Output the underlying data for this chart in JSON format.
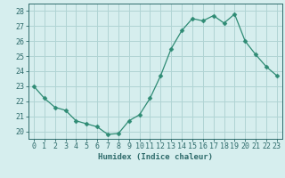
{
  "x": [
    0,
    1,
    2,
    3,
    4,
    5,
    6,
    7,
    8,
    9,
    10,
    11,
    12,
    13,
    14,
    15,
    16,
    17,
    18,
    19,
    20,
    21,
    22,
    23
  ],
  "y": [
    23.0,
    22.2,
    21.6,
    21.4,
    20.7,
    20.5,
    20.3,
    19.8,
    19.85,
    20.7,
    21.1,
    22.2,
    23.7,
    25.5,
    26.7,
    27.5,
    27.35,
    27.7,
    27.2,
    27.8,
    26.0,
    25.1,
    24.3,
    23.7
  ],
  "line_color": "#2e8b74",
  "marker": "D",
  "marker_size": 2.5,
  "bg_color": "#d6eeee",
  "grid_color": "#b0d4d4",
  "tick_color": "#2e6b6b",
  "xlabel": "Humidex (Indice chaleur)",
  "xlim": [
    -0.5,
    23.5
  ],
  "ylim": [
    19.5,
    28.5
  ],
  "yticks": [
    20,
    21,
    22,
    23,
    24,
    25,
    26,
    27,
    28
  ],
  "xticks": [
    0,
    1,
    2,
    3,
    4,
    5,
    6,
    7,
    8,
    9,
    10,
    11,
    12,
    13,
    14,
    15,
    16,
    17,
    18,
    19,
    20,
    21,
    22,
    23
  ],
  "xlabel_fontsize": 6.5,
  "tick_fontsize": 6
}
